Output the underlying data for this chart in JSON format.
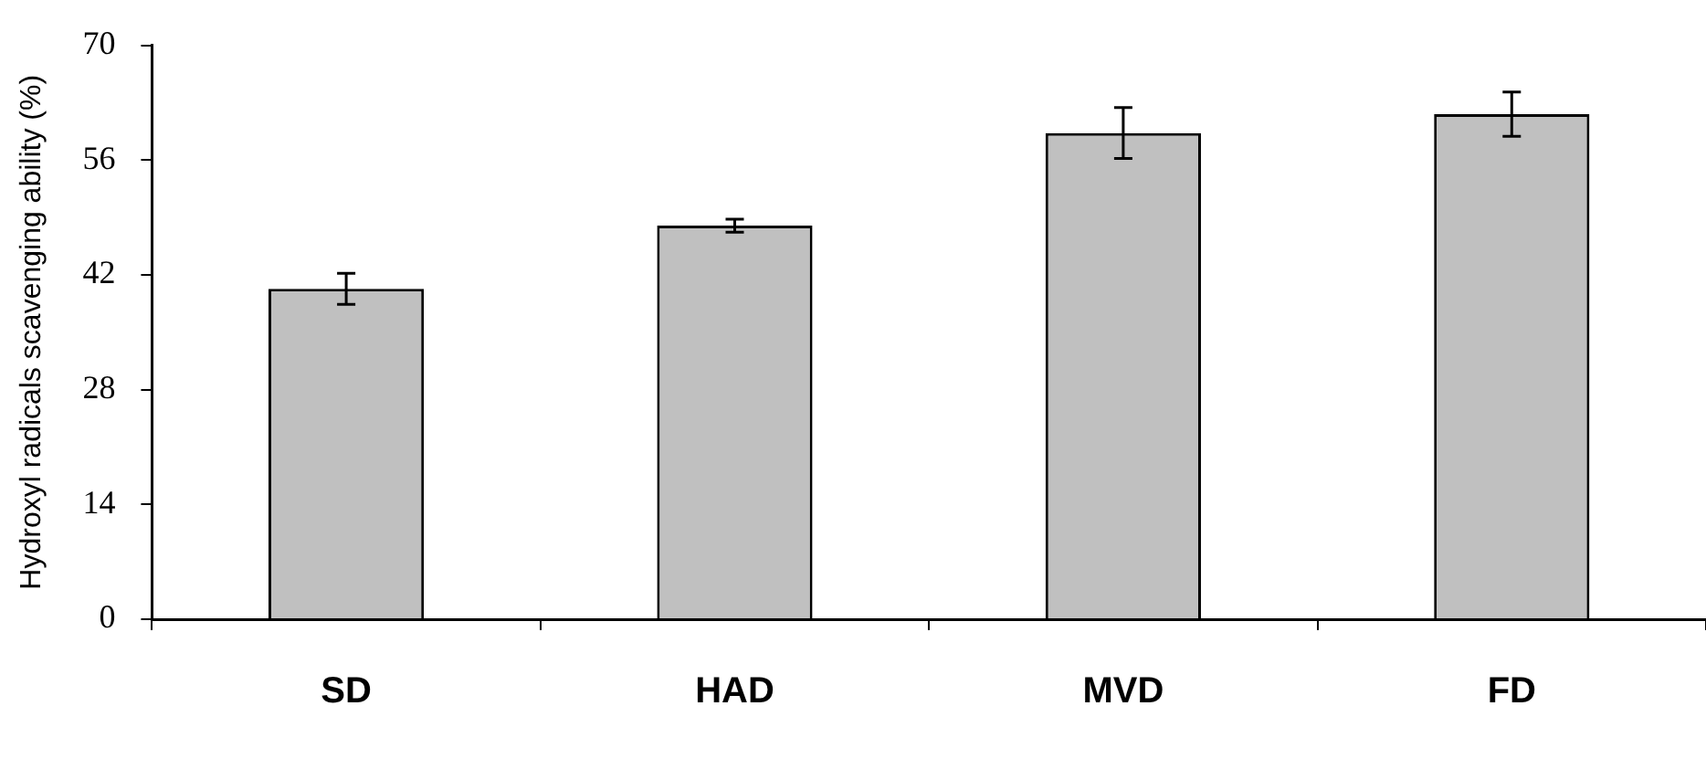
{
  "chart_data": {
    "type": "bar",
    "ylabel": "Hydroxyl radicals scavenging ability (%)",
    "categories": [
      "SD",
      "HAD",
      "MVD",
      "FD"
    ],
    "values": [
      40.3,
      48.0,
      59.3,
      61.6
    ],
    "errors": [
      1.9,
      0.8,
      3.1,
      2.7
    ],
    "color": "#c0c0c0",
    "ylim": [
      0,
      70
    ],
    "yticks": [
      0,
      14,
      28,
      42,
      56,
      70
    ],
    "grid": false,
    "legend": false
  }
}
